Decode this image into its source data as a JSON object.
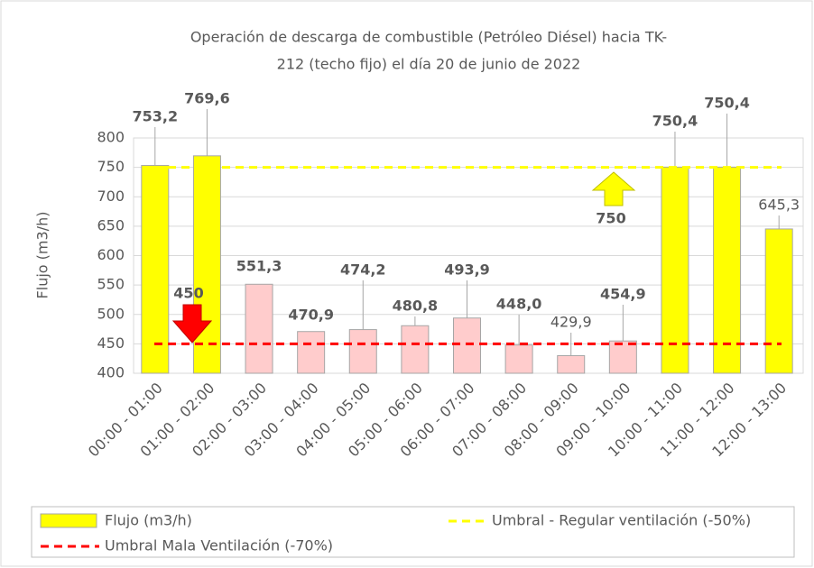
{
  "chart_data": {
    "type": "bar",
    "title": [
      "Operación de descarga de combustible (Petróleo Diésel) hacia TK-",
      "212 (techo fijo) el día 20 de junio de 2022"
    ],
    "y_label": "Flujo (m3/h)",
    "categories": [
      "00:00 - 01:00",
      "01:00 - 02:00",
      "02:00 - 03:00",
      "03:00 - 04:00",
      "04:00 - 05:00",
      "05:00 - 06:00",
      "06:00 - 07:00",
      "07:00 - 08:00",
      "08:00 - 09:00",
      "09:00 - 10:00",
      "10:00 - 11:00",
      "11:00 - 12:00",
      "12:00 - 13:00"
    ],
    "series": [
      {
        "name": "Flujo (m3/h)",
        "color": "#ffff00",
        "values": [
          753.2,
          769.6,
          551.3,
          470.9,
          474.2,
          480.8,
          493.9,
          448.0,
          429.9,
          454.9,
          750.4,
          750.4,
          645.3
        ],
        "value_labels": [
          "753,2",
          "769,6",
          "551,3",
          "470,9",
          "474,2",
          "480,8",
          "493,9",
          "448,0",
          "429,9",
          "454,9",
          "750,4",
          "750,4",
          "645,3"
        ],
        "colors": [
          "#ffff00",
          "#ffff00",
          "#ffcccc",
          "#ffcccc",
          "#ffcccc",
          "#ffcccc",
          "#ffcccc",
          "#ffcccc",
          "#ffcccc",
          "#ffcccc",
          "#ffff00",
          "#ffff00",
          "#ffff00"
        ]
      }
    ],
    "thresholds": [
      {
        "name": "Umbral - Regular ventilación (-50%)",
        "value": 750,
        "color": "#ffff00"
      },
      {
        "name": "Umbral Mala Ventilación (-70%)",
        "value": 450,
        "color": "#ff0000"
      }
    ],
    "ylim": [
      400,
      800
    ],
    "yticks": [
      400,
      450,
      500,
      550,
      600,
      650,
      700,
      750,
      800
    ],
    "grid": true
  }
}
